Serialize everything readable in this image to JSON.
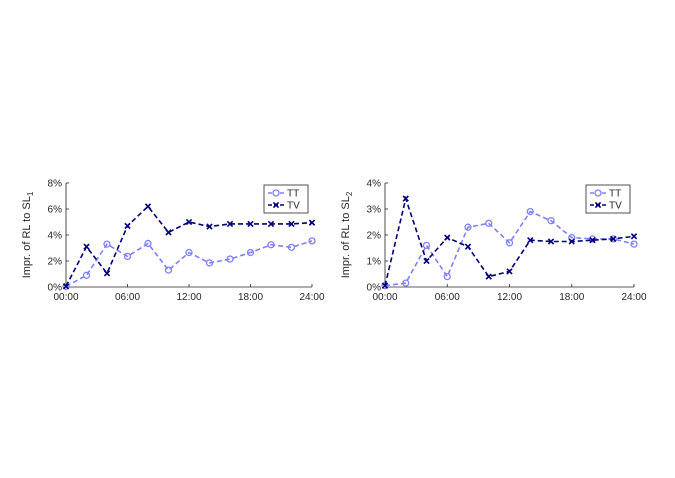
{
  "chart_data": [
    {
      "type": "line",
      "ylabel": "Impr. of RL to SL",
      "ylabel_sub": "1",
      "x_tick_labels": [
        "00:00",
        "06:00",
        "12:00",
        "18:00",
        "24:00"
      ],
      "x_ticks": [
        0,
        6,
        12,
        18,
        24
      ],
      "xlim": [
        0,
        24
      ],
      "y_tick_labels": [
        "0%",
        "2%",
        "4%",
        "6%",
        "8%"
      ],
      "y_ticks": [
        0,
        2,
        4,
        6,
        8
      ],
      "ylim": [
        0,
        8
      ],
      "grid": false,
      "legend": "top-right",
      "x": [
        0,
        2,
        4,
        6,
        8,
        10,
        12,
        14,
        16,
        18,
        20,
        22,
        24
      ],
      "series": [
        {
          "name": "TT",
          "color": "#8080ff",
          "marker": "circle",
          "values": [
            0.05,
            0.9,
            3.3,
            2.35,
            3.35,
            1.3,
            2.65,
            1.85,
            2.15,
            2.65,
            3.25,
            3.05,
            3.55
          ]
        },
        {
          "name": "TV",
          "color": "#00007a",
          "marker": "x",
          "values": [
            0.05,
            3.1,
            1.05,
            4.7,
            6.2,
            4.2,
            5.0,
            4.65,
            4.85,
            4.85,
            4.85,
            4.85,
            4.95
          ]
        }
      ]
    },
    {
      "type": "line",
      "ylabel": "Impr. of RL to SL",
      "ylabel_sub": "2",
      "x_tick_labels": [
        "00:00",
        "06:00",
        "12:00",
        "18:00",
        "24:00"
      ],
      "x_ticks": [
        0,
        6,
        12,
        18,
        24
      ],
      "xlim": [
        0,
        24
      ],
      "y_tick_labels": [
        "0%",
        "1%",
        "2%",
        "3%",
        "4%"
      ],
      "y_ticks": [
        0,
        1,
        2,
        3,
        4
      ],
      "ylim": [
        0,
        4
      ],
      "grid": false,
      "legend": "top-right",
      "x": [
        0,
        2,
        4,
        6,
        8,
        10,
        12,
        14,
        16,
        18,
        20,
        22,
        24
      ],
      "series": [
        {
          "name": "TT",
          "color": "#8080ff",
          "marker": "circle",
          "values": [
            0.05,
            0.15,
            1.6,
            0.4,
            2.3,
            2.45,
            1.7,
            2.9,
            2.55,
            1.9,
            1.85,
            1.85,
            1.65
          ]
        },
        {
          "name": "TV",
          "color": "#00007a",
          "marker": "x",
          "values": [
            0.05,
            3.4,
            1.0,
            1.9,
            1.55,
            0.4,
            0.6,
            1.8,
            1.75,
            1.75,
            1.8,
            1.85,
            1.95
          ]
        }
      ]
    }
  ]
}
